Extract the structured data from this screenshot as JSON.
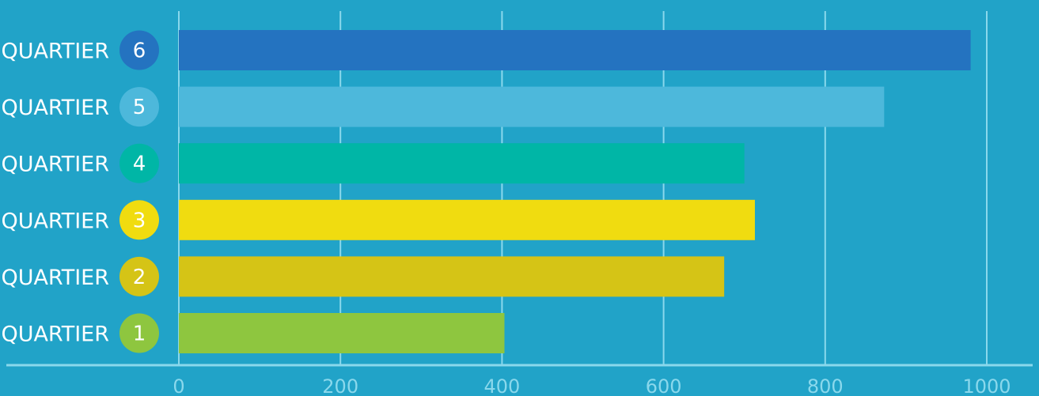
{
  "chart_data": {
    "type": "bar",
    "orientation": "horizontal",
    "categories": [
      {
        "label": "QUARTIER",
        "number": "6"
      },
      {
        "label": "QUARTIER",
        "number": "5"
      },
      {
        "label": "QUARTIER",
        "number": "4"
      },
      {
        "label": "QUARTIER",
        "number": "3"
      },
      {
        "label": "QUARTIER",
        "number": "2"
      },
      {
        "label": "QUARTIER",
        "number": "1"
      }
    ],
    "values": [
      980,
      873,
      700,
      713,
      675,
      403
    ],
    "colors": [
      "#2473c0",
      "#4db8db",
      "#00b6a6",
      "#f0dc10",
      "#d5c416",
      "#8ec63f"
    ],
    "xlim": [
      0,
      1000
    ],
    "x_ticks": [
      "0",
      "200",
      "400",
      "600",
      "800",
      "1000"
    ],
    "grid": true,
    "title": "",
    "xlabel": "",
    "ylabel": ""
  },
  "colors": {
    "background": "#21a3c8",
    "gridline": "#8ad8ec",
    "axis": "#8ad8ec",
    "text": "#ffffff"
  }
}
